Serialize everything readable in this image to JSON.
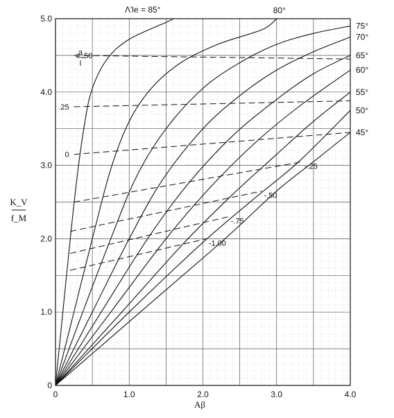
{
  "chart_data": {
    "type": "line",
    "xlabel": "Aβ",
    "ylabel_top": "K_V",
    "ylabel_bottom": "f_M",
    "xlim": [
      0,
      4.0
    ],
    "ylim": [
      0,
      5.0
    ],
    "xticks": [
      "0",
      "1.0",
      "2.0",
      "3.0",
      "4.0"
    ],
    "yticks": [
      "0",
      "1.0",
      "2.0",
      "3.0",
      "4.0",
      "5.0"
    ],
    "grid": true,
    "top_annotation": "Λ'le = 85°",
    "series": [
      {
        "name": "85°",
        "points": [
          [
            0,
            0
          ],
          [
            0.1,
            1.0
          ],
          [
            0.2,
            2.0
          ],
          [
            0.3,
            2.9
          ],
          [
            0.4,
            3.6
          ],
          [
            0.5,
            4.05
          ],
          [
            0.7,
            4.45
          ],
          [
            1.0,
            4.72
          ],
          [
            1.5,
            4.95
          ],
          [
            1.6,
            5.0
          ]
        ]
      },
      {
        "name": "80°",
        "points": [
          [
            0,
            0
          ],
          [
            0.25,
            1.0
          ],
          [
            0.5,
            2.0
          ],
          [
            0.75,
            2.95
          ],
          [
            1.0,
            3.6
          ],
          [
            1.3,
            4.05
          ],
          [
            1.7,
            4.4
          ],
          [
            2.2,
            4.65
          ],
          [
            2.8,
            4.85
          ],
          [
            3.0,
            5.0
          ]
        ]
      },
      {
        "name": "75°",
        "points": [
          [
            0,
            0
          ],
          [
            0.37,
            1.0
          ],
          [
            0.75,
            2.0
          ],
          [
            1.1,
            2.85
          ],
          [
            1.5,
            3.5
          ],
          [
            2.0,
            4.05
          ],
          [
            2.5,
            4.4
          ],
          [
            3.0,
            4.65
          ],
          [
            3.5,
            4.8
          ],
          [
            4.0,
            4.9
          ]
        ]
      },
      {
        "name": "70°",
        "points": [
          [
            0,
            0
          ],
          [
            0.5,
            1.0
          ],
          [
            1.0,
            2.0
          ],
          [
            1.45,
            2.8
          ],
          [
            2.0,
            3.5
          ],
          [
            2.5,
            3.95
          ],
          [
            3.0,
            4.3
          ],
          [
            3.5,
            4.55
          ],
          [
            4.0,
            4.75
          ]
        ]
      },
      {
        "name": "65°",
        "points": [
          [
            0,
            0
          ],
          [
            0.62,
            1.0
          ],
          [
            1.25,
            2.0
          ],
          [
            1.8,
            2.75
          ],
          [
            2.4,
            3.4
          ],
          [
            3.0,
            3.9
          ],
          [
            3.5,
            4.25
          ],
          [
            4.0,
            4.5
          ]
        ]
      },
      {
        "name": "60°",
        "points": [
          [
            0,
            0
          ],
          [
            0.75,
            1.0
          ],
          [
            1.5,
            2.0
          ],
          [
            2.1,
            2.7
          ],
          [
            2.7,
            3.3
          ],
          [
            3.3,
            3.8
          ],
          [
            4.0,
            4.3
          ]
        ]
      },
      {
        "name": "55°",
        "points": [
          [
            0,
            0
          ],
          [
            0.9,
            1.0
          ],
          [
            1.75,
            1.95
          ],
          [
            2.4,
            2.6
          ],
          [
            3.0,
            3.15
          ],
          [
            3.5,
            3.6
          ],
          [
            4.0,
            4.0
          ]
        ]
      },
      {
        "name": "50°",
        "points": [
          [
            0,
            0
          ],
          [
            1.0,
            1.0
          ],
          [
            2.0,
            1.95
          ],
          [
            2.7,
            2.55
          ],
          [
            3.3,
            3.05
          ],
          [
            4.0,
            3.75
          ]
        ]
      },
      {
        "name": "45°",
        "points": [
          [
            0,
            0
          ],
          [
            1.15,
            1.0
          ],
          [
            2.3,
            2.0
          ],
          [
            3.0,
            2.65
          ],
          [
            3.5,
            3.05
          ],
          [
            4.0,
            3.45
          ]
        ]
      }
    ],
    "ratio_lines": {
      "title_top": "a",
      "title_bottom": "l",
      "lines": [
        {
          "name": "= .50",
          "points": [
            [
              0.25,
              4.5
            ],
            [
              4.0,
              4.45
            ]
          ]
        },
        {
          "name": ".25",
          "points": [
            [
              0.25,
              3.8
            ],
            [
              4.0,
              3.88
            ]
          ]
        },
        {
          "name": "0",
          "points": [
            [
              0.25,
              3.15
            ],
            [
              4.0,
              3.45
            ]
          ]
        },
        {
          "name": "-.25",
          "points": [
            [
              0.25,
              2.5
            ],
            [
              3.35,
              3.05
            ]
          ]
        },
        {
          "name": "-.50",
          "points": [
            [
              0.2,
              2.1
            ],
            [
              2.8,
              2.65
            ]
          ]
        },
        {
          "name": "-.75",
          "points": [
            [
              0.2,
              1.8
            ],
            [
              2.35,
              2.3
            ]
          ]
        },
        {
          "name": "-1.00",
          "points": [
            [
              0.2,
              1.57
            ],
            [
              2.05,
              2.0
            ]
          ]
        }
      ]
    }
  }
}
